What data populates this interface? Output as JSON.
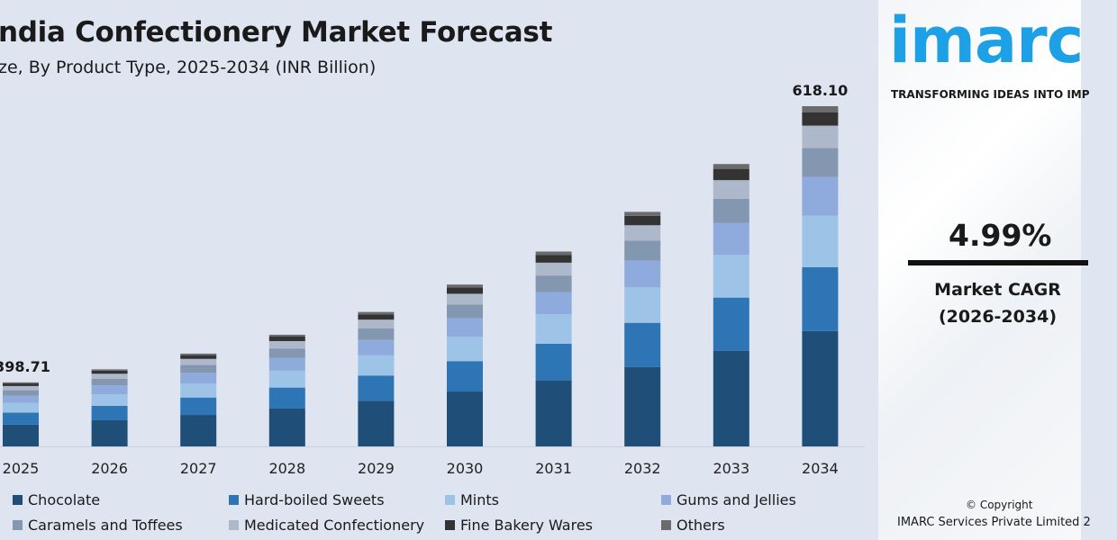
{
  "chart_data": {
    "type": "bar",
    "stacked": true,
    "title": "ndia Confectionery Market Forecast",
    "subtitle": "ze, By Product Type, 2025-2034 (INR Billion)",
    "xlabel": "",
    "ylabel": "",
    "grid": false,
    "legend_position": "bottom",
    "categories": [
      "2025",
      "2026",
      "2027",
      "2028",
      "2029",
      "2030",
      "2031",
      "2032",
      "2033",
      "2034"
    ],
    "totals": [
      398.71,
      418.6,
      439.5,
      461.4,
      484.4,
      508.6,
      534.0,
      560.6,
      588.6,
      618.1
    ],
    "total_labels": {
      "2025": "398.71",
      "2034": "618.10"
    },
    "series": [
      {
        "name": "Chocolate",
        "color": "#1f4e79",
        "values": [
          135.2,
          141.9,
          149.0,
          156.4,
          164.2,
          172.4,
          181.0,
          190.0,
          199.5,
          209.5
        ]
      },
      {
        "name": "Hard-boiled Sweets",
        "color": "#2e75b6",
        "values": [
          74.9,
          78.7,
          82.6,
          86.7,
          91.1,
          95.6,
          100.4,
          105.4,
          110.7,
          116.2
        ]
      },
      {
        "name": "Mints",
        "color": "#9dc3e6",
        "values": [
          60.2,
          63.2,
          66.4,
          69.7,
          73.1,
          76.8,
          80.6,
          84.7,
          88.9,
          93.3
        ]
      },
      {
        "name": "Gums and Jellies",
        "color": "#8faadc",
        "values": [
          45.5,
          47.7,
          50.1,
          52.6,
          55.2,
          58.0,
          60.9,
          63.9,
          67.1,
          70.5
        ]
      },
      {
        "name": "Caramels and Toffees",
        "color": "#8497b0",
        "values": [
          33.9,
          35.6,
          37.4,
          39.2,
          41.2,
          43.2,
          45.4,
          47.7,
          50.0,
          52.5
        ]
      },
      {
        "name": "Medicated Confectionery",
        "color": "#adb9ca",
        "values": [
          26.3,
          27.6,
          29.0,
          30.5,
          32.0,
          33.6,
          35.2,
          37.0,
          38.8,
          40.8
        ]
      },
      {
        "name": "Fine Bakery Wares",
        "color": "#333333",
        "values": [
          15.9,
          16.7,
          17.6,
          18.5,
          19.4,
          20.3,
          21.4,
          22.4,
          23.5,
          24.4
        ]
      },
      {
        "name": "Others",
        "color": "#6b6b6b",
        "values": [
          6.8,
          7.2,
          7.4,
          7.8,
          8.2,
          8.7,
          9.1,
          9.5,
          10.1,
          10.9
        ]
      }
    ]
  },
  "panel": {
    "logo_text": "imarc",
    "tagline": "TRANSFORMING IDEAS INTO IMP",
    "cagr_value": "4.99%",
    "cagr_label": "Market CAGR",
    "cagr_period": "(2026-2034)",
    "copyright": "© Copyright",
    "company": "IMARC Services Private Limited 2",
    "brand_color": "#1ea0e6"
  }
}
